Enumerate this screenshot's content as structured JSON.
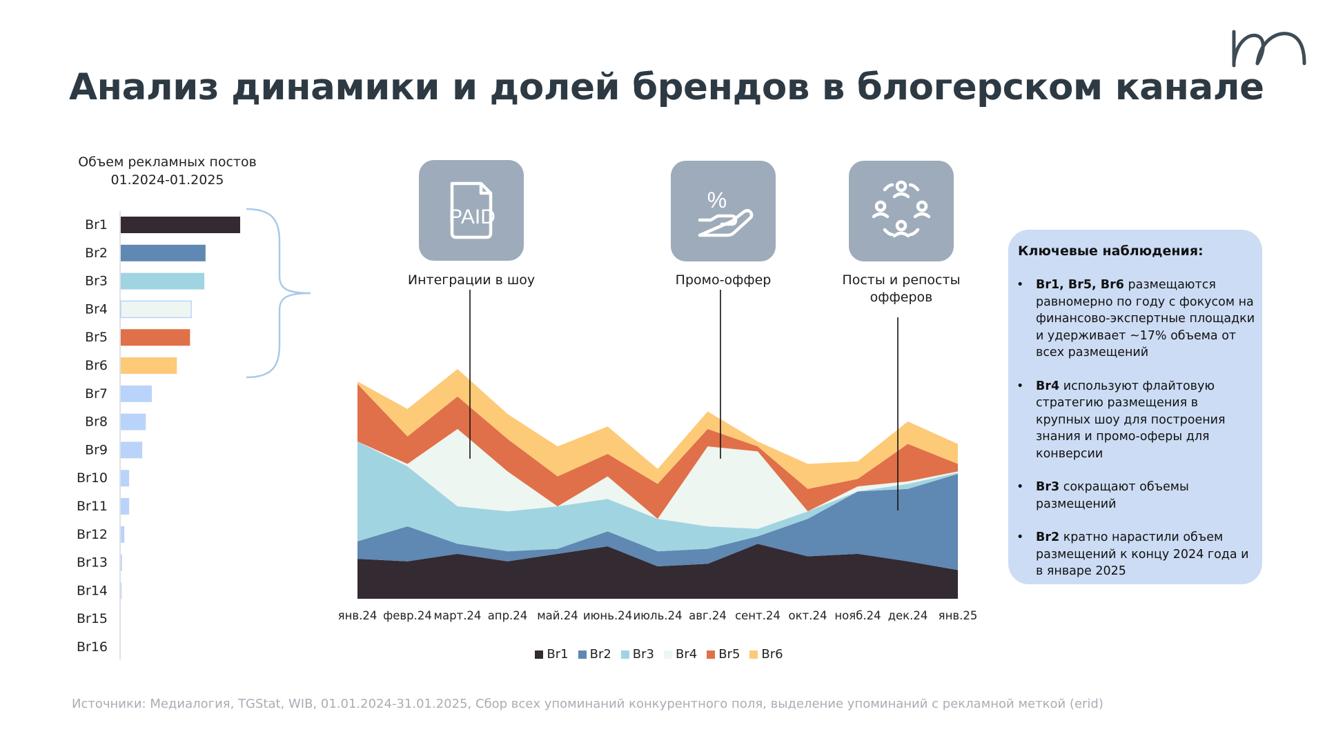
{
  "page": {
    "title": "Анализ динамики и долей брендов в блогерском канале",
    "sources": "Источники: Медиалогия, TGStat, WIB, 01.01.2024-31.01.2025, Сбор всех упоминаний конкурентного поля, выделение упоминаний с рекламной меткой (erid)"
  },
  "icons": [
    {
      "name": "paid-document-icon",
      "label": "Интеграции в шоу",
      "glyph_text": "PAID"
    },
    {
      "name": "promo-hand-percent-icon",
      "label": "Промо-оффер",
      "glyph_text": "%"
    },
    {
      "name": "people-circle-repost-icon",
      "label": "Посты и репосты офферов"
    }
  ],
  "observations": {
    "title": "Ключевые наблюдения:",
    "items": [
      {
        "bold": "Br1, Br5, Br6",
        "text": " размещаются равномерно по году с фокусом на финансово-экспертные площадки и удерживает ~17% объема  от всех размещений"
      },
      {
        "bold": "Br4",
        "text": " используют флайтовую стратегию размещения в крупных шоу для построения знания и промо-оферы для конверсии"
      },
      {
        "bold": "Br3",
        "text": " сокращают объемы размещений"
      },
      {
        "bold": "Br2",
        "text": " кратно нарастили объем размещений к концу 2024 года и в январе 2025"
      }
    ]
  },
  "colors": {
    "Br1": "#342a32",
    "Br2": "#5f88b2",
    "Br3": "#a1d4e1",
    "Br4": "#eef6f1",
    "Br5": "#e07049",
    "Br6": "#fdca78",
    "other_bars": "#bad3fb",
    "brace": "#a9c9ec",
    "icon_bg": "#9eabba"
  },
  "chart_data": [
    {
      "type": "bar",
      "orientation": "horizontal",
      "title": "Объем рекламных постов 01.2024-01.2025",
      "categories": [
        "Br1",
        "Br2",
        "Br3",
        "Br4",
        "Br5",
        "Br6",
        "Br7",
        "Br8",
        "Br9",
        "Br10",
        "Br11",
        "Br12",
        "Br13",
        "Br14",
        "Br15",
        "Br16"
      ],
      "values": [
        100,
        71,
        70,
        59,
        58,
        47,
        26,
        21,
        18,
        7,
        7,
        3,
        1,
        0.7,
        0,
        0
      ],
      "unit": "relative",
      "highlight_bracket": [
        "Br1",
        "Br6"
      ]
    },
    {
      "type": "area",
      "stacked": true,
      "categories": [
        "янв.24",
        "февр.24",
        "март.24",
        "апр.24",
        "май.24",
        "июнь.24",
        "июль.24",
        "авг.24",
        "сент.24",
        "окт.24",
        "нояб.24",
        "дек.24",
        "янв.25"
      ],
      "series": [
        {
          "name": "Br1",
          "values": [
            16,
            15,
            18,
            15,
            18,
            21,
            13,
            14,
            22,
            17,
            18,
            15,
            11.5
          ]
        },
        {
          "name": "Br2",
          "values": [
            7,
            14,
            4,
            4,
            2,
            6,
            6,
            6,
            3,
            15,
            25,
            29,
            38.5
          ]
        },
        {
          "name": "Br3",
          "values": [
            40,
            24,
            15,
            16,
            17,
            13,
            13,
            9,
            3,
            3,
            0,
            2,
            0.5
          ]
        },
        {
          "name": "Br4",
          "values": [
            0,
            1,
            31,
            16,
            0,
            9,
            0,
            32,
            31,
            0,
            2,
            1,
            0.5
          ]
        },
        {
          "name": "Br5",
          "values": [
            23,
            11,
            13,
            13,
            12,
            9,
            14,
            7,
            2,
            9,
            3,
            15,
            3
          ]
        },
        {
          "name": "Br6",
          "values": [
            1,
            11,
            11,
            10,
            12,
            11,
            6,
            7,
            2,
            10,
            7,
            9,
            8
          ]
        }
      ],
      "ylim": [
        0,
        100
      ],
      "grid": false,
      "legend": "bottom-center",
      "annotations": [
        "Интеграции в шоу",
        "Промо-оффер",
        "Посты и репосты офферов"
      ]
    }
  ]
}
